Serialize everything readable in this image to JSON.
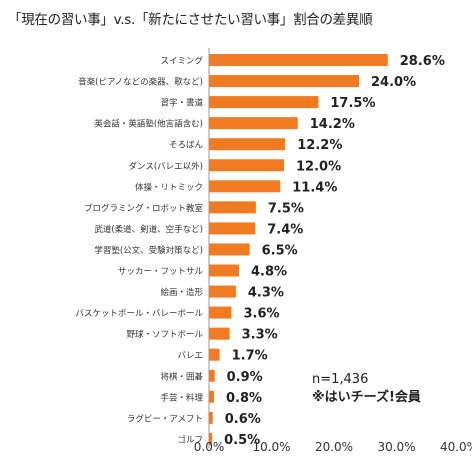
{
  "chart_data": {
    "type": "bar",
    "orientation": "horizontal",
    "title": "「現在の習い事」v.s.「新たにさせたい習い事」割合の差異順",
    "categories": [
      "スイミング",
      "音楽(ピアノなどの楽器、歌など)",
      "習字・書道",
      "英会話・英語塾(他言語含む)",
      "そろばん",
      "ダンス(バレエ以外)",
      "体操・リトミック",
      "プログラミング・ロボット教室",
      "武道(柔道、剣道、空手など)",
      "学習塾(公文、受験対策など)",
      "サッカー・フットサル",
      "絵画・造形",
      "バスケットボール・バレーボール",
      "野球・ソフトボール",
      "バレエ",
      "将棋・囲碁",
      "手芸・料理",
      "ラグビー・アメフト",
      "ゴルフ"
    ],
    "values": [
      28.6,
      24.0,
      17.5,
      14.2,
      12.2,
      12.0,
      11.4,
      7.5,
      7.4,
      6.5,
      4.8,
      4.3,
      3.6,
      3.3,
      1.7,
      0.9,
      0.8,
      0.6,
      0.5
    ],
    "value_labels": [
      "28.6%",
      "24.0%",
      "17.5%",
      "14.2%",
      "12.2%",
      "12.0%",
      "11.4%",
      "7.5%",
      "7.4%",
      "6.5%",
      "4.8%",
      "4.3%",
      "3.6%",
      "3.3%",
      "1.7%",
      "0.9%",
      "0.8%",
      "0.6%",
      "0.5%"
    ],
    "xlim": [
      0,
      40
    ],
    "x_ticks": [
      "0.0%",
      "10.0%",
      "20.0%",
      "30.0%",
      "40.0%"
    ],
    "grid": false,
    "bar_color": "#f07b22",
    "annotation_n": "n=1,436",
    "annotation_member": "※はいチーズ!会員"
  }
}
